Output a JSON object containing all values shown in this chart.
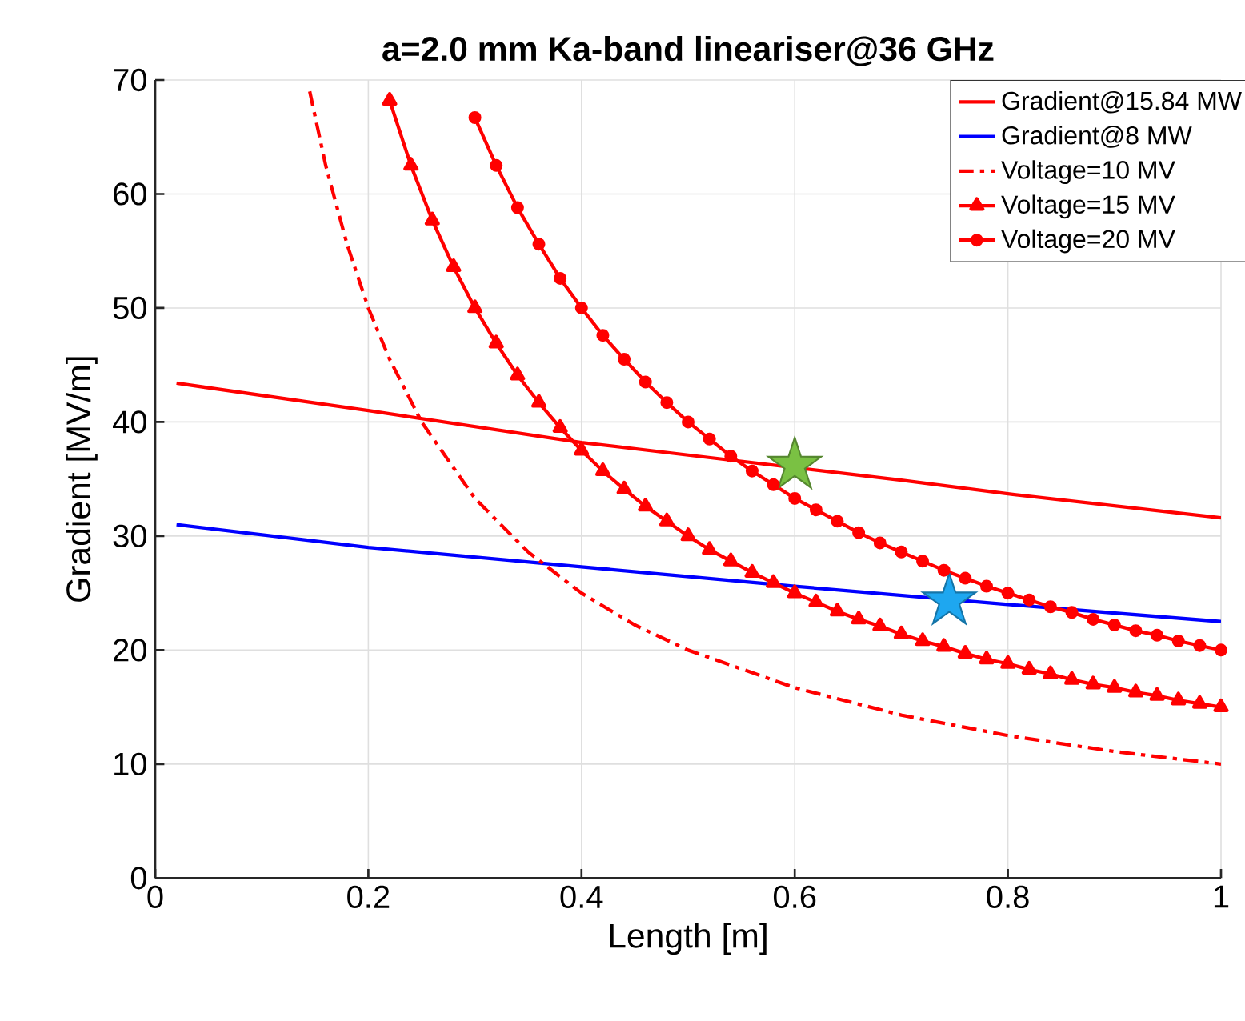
{
  "chart_data": {
    "type": "line",
    "title": "a=2.0 mm Ka-band lineariser@36 GHz",
    "xlabel": "Length [m]",
    "ylabel": "Gradient [MV/m]",
    "xlim": [
      0,
      1
    ],
    "ylim": [
      0,
      70
    ],
    "xticks": [
      0,
      0.2,
      0.4,
      0.6,
      0.8,
      1
    ],
    "yticks": [
      0,
      10,
      20,
      30,
      40,
      50,
      60,
      70
    ],
    "grid": true,
    "legend": "top right",
    "series": [
      {
        "name": "Gradient@15.84 MW",
        "color": "#ff0000",
        "line_style": "solid",
        "marker": "none",
        "x": [
          0.02,
          0.2,
          0.4,
          0.5,
          0.7,
          0.8,
          1.0
        ],
        "values": [
          43.4,
          41.0,
          38.2,
          37.1,
          34.9,
          33.7,
          31.6
        ]
      },
      {
        "name": "Gradient@8 MW",
        "color": "#0000ff",
        "line_style": "solid",
        "marker": "none",
        "x": [
          0.02,
          0.2,
          0.4,
          0.6,
          0.8,
          1.0
        ],
        "values": [
          31.0,
          29.0,
          27.3,
          25.6,
          24.0,
          22.5
        ]
      },
      {
        "name": "Voltage=10 MV",
        "color": "#ff0000",
        "line_style": "dashdot",
        "marker": "none",
        "x": [
          0.145,
          0.16,
          0.18,
          0.2,
          0.22,
          0.25,
          0.3,
          0.35,
          0.4,
          0.45,
          0.5,
          0.6,
          0.7,
          0.8,
          0.9,
          1.0
        ],
        "values": [
          69.0,
          62.5,
          55.6,
          50.0,
          45.5,
          40.0,
          33.3,
          28.6,
          25.0,
          22.2,
          20.0,
          16.7,
          14.3,
          12.5,
          11.1,
          10.0
        ]
      },
      {
        "name": "Voltage=15 MV",
        "color": "#ff0000",
        "line_style": "solid",
        "marker": "triangle",
        "x": [
          0.22,
          0.24,
          0.26,
          0.28,
          0.3,
          0.32,
          0.34,
          0.36,
          0.38,
          0.4,
          0.42,
          0.44,
          0.46,
          0.48,
          0.5,
          0.52,
          0.54,
          0.56,
          0.58,
          0.6,
          0.62,
          0.64,
          0.66,
          0.68,
          0.7,
          0.72,
          0.74,
          0.76,
          0.78,
          0.8,
          0.82,
          0.84,
          0.86,
          0.88,
          0.9,
          0.92,
          0.94,
          0.96,
          0.98,
          1.0
        ],
        "values": [
          68.2,
          62.5,
          57.7,
          53.6,
          50.0,
          46.9,
          44.1,
          41.7,
          39.5,
          37.5,
          35.7,
          34.1,
          32.6,
          31.3,
          30.0,
          28.8,
          27.8,
          26.8,
          25.9,
          25.0,
          24.2,
          23.4,
          22.7,
          22.1,
          21.4,
          20.8,
          20.3,
          19.7,
          19.2,
          18.8,
          18.3,
          17.9,
          17.4,
          17.0,
          16.7,
          16.3,
          16.0,
          15.6,
          15.3,
          15.0
        ]
      },
      {
        "name": "Voltage=20 MV",
        "color": "#ff0000",
        "line_style": "solid",
        "marker": "circle",
        "x": [
          0.3,
          0.32,
          0.34,
          0.36,
          0.38,
          0.4,
          0.42,
          0.44,
          0.46,
          0.48,
          0.5,
          0.52,
          0.54,
          0.56,
          0.58,
          0.6,
          0.62,
          0.64,
          0.66,
          0.68,
          0.7,
          0.72,
          0.74,
          0.76,
          0.78,
          0.8,
          0.82,
          0.84,
          0.86,
          0.88,
          0.9,
          0.92,
          0.94,
          0.96,
          0.98,
          1.0
        ],
        "values": [
          66.7,
          62.5,
          58.8,
          55.6,
          52.6,
          50.0,
          47.6,
          45.5,
          43.5,
          41.7,
          40.0,
          38.5,
          37.0,
          35.7,
          34.5,
          33.3,
          32.3,
          31.3,
          30.3,
          29.4,
          28.6,
          27.8,
          27.0,
          26.3,
          25.6,
          25.0,
          24.4,
          23.8,
          23.3,
          22.7,
          22.2,
          21.7,
          21.3,
          20.8,
          20.4,
          20.0
        ]
      },
      {
        "type": "scatter",
        "color": "#7ac143",
        "marker": "star",
        "x": [
          0.6
        ],
        "values": [
          36.2
        ]
      },
      {
        "type": "scatter",
        "color": "#1ea7f0",
        "marker": "star",
        "x": [
          0.745
        ],
        "values": [
          24.3
        ]
      }
    ]
  }
}
